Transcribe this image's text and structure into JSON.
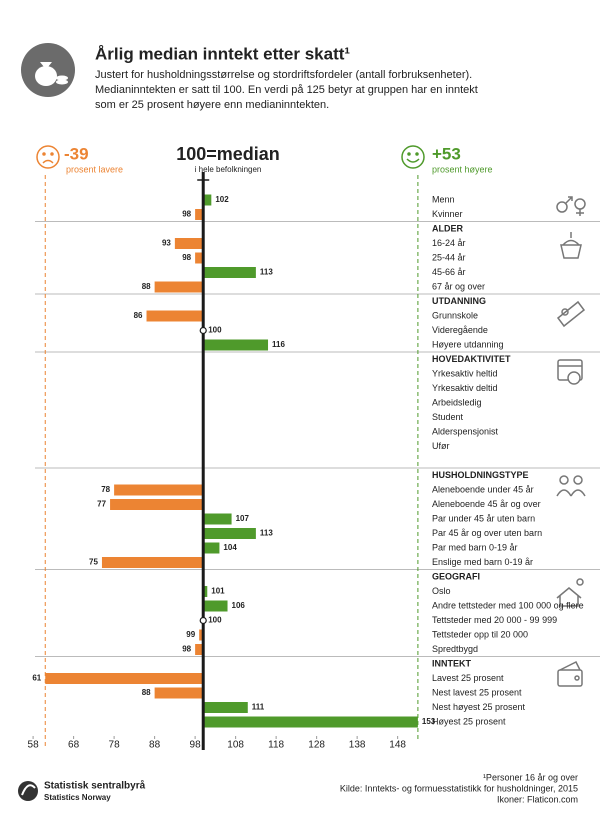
{
  "chart_data": {
    "type": "bar",
    "title": "Årlig median inntekt etter skatt¹",
    "subtitle": [
      "Justert for husholdningsstørrelse og stordriftsfordeler (antall forbruksenheter).",
      "Medianinntekten er satt til 100.  En verdi på 125 betyr at gruppen har en inntekt",
      "som er 25 prosent høyere enn medianinntekten."
    ],
    "low_label": "-39",
    "low_caption": "prosent lavere",
    "high_label": "+53",
    "high_caption": "prosent høyere",
    "median_label": "100=median",
    "median_caption": "i hele befolkningen",
    "median": 100,
    "colors": {
      "below": "#ec8433",
      "above": "#4f9a2b"
    },
    "xlim": [
      56,
      155
    ],
    "xticks": [
      58,
      68,
      78,
      88,
      98,
      108,
      118,
      128,
      138,
      148
    ],
    "groups": [
      {
        "name": null,
        "items": [
          {
            "label": "Menn",
            "value": 102
          },
          {
            "label": "Kvinner",
            "value": 98
          }
        ]
      },
      {
        "name": "ALDER",
        "items": [
          {
            "label": "16-24 år",
            "value": 93
          },
          {
            "label": "25-44 år",
            "value": 98
          },
          {
            "label": "45-66 år",
            "value": 113
          },
          {
            "label": "67 år og over",
            "value": 88
          }
        ]
      },
      {
        "name": "UTDANNING",
        "items": [
          {
            "label": "Grunnskole",
            "value": 86
          },
          {
            "label": "Videregående",
            "value": 100
          },
          {
            "label": "Høyere utdanning",
            "value": 116
          }
        ]
      },
      {
        "name": "HOVEDAKTIVITET",
        "items": [
          {
            "label": "Yrkesaktiv heltid",
            "value": null
          },
          {
            "label": "Yrkesaktiv deltid",
            "value": null
          },
          {
            "label": "Arbeidsledig",
            "value": null
          },
          {
            "label": "Student",
            "value": null
          },
          {
            "label": "Alderspensjonist",
            "value": null
          },
          {
            "label": "Ufør",
            "value": null
          }
        ]
      },
      {
        "name": "HUSHOLDNINGSTYPE",
        "items": [
          {
            "label": "Aleneboende under 45 år",
            "value": 78
          },
          {
            "label": "Aleneboende 45 år og over",
            "value": 77
          },
          {
            "label": "Par under 45 år uten barn",
            "value": 107
          },
          {
            "label": "Par 45 år og over uten barn",
            "value": 113
          },
          {
            "label": "Par med barn 0-19 år",
            "value": 104
          },
          {
            "label": "Enslige med barn 0-19 år",
            "value": 75
          }
        ]
      },
      {
        "name": "GEOGRAFI",
        "items": [
          {
            "label": "Oslo",
            "value": 101
          },
          {
            "label": "Andre tettsteder med 100 000 og flere",
            "value": 106
          },
          {
            "label": "Tettsteder med 20 000 - 99 999",
            "value": 100
          },
          {
            "label": "Tettsteder opp til 20 000",
            "value": 99
          },
          {
            "label": "Spredtbygd",
            "value": 98
          }
        ]
      },
      {
        "name": "INNTEKT",
        "items": [
          {
            "label": "Lavest 25 prosent",
            "value": 61
          },
          {
            "label": "Nest lavest 25 prosent",
            "value": 88
          },
          {
            "label": "Nest høyest 25 prosent",
            "value": 111
          },
          {
            "label": "Høyest 25 prosent",
            "value": 153
          }
        ]
      }
    ],
    "footnote": "¹Personer 16 år og over",
    "source": "Kilde: Inntekts- og formuesstatistikk for husholdninger, 2015",
    "credits": "Ikoner: Flaticon.com",
    "logo_name": "Statistisk sentralbyrå",
    "logo_sub": "Statistics Norway"
  }
}
